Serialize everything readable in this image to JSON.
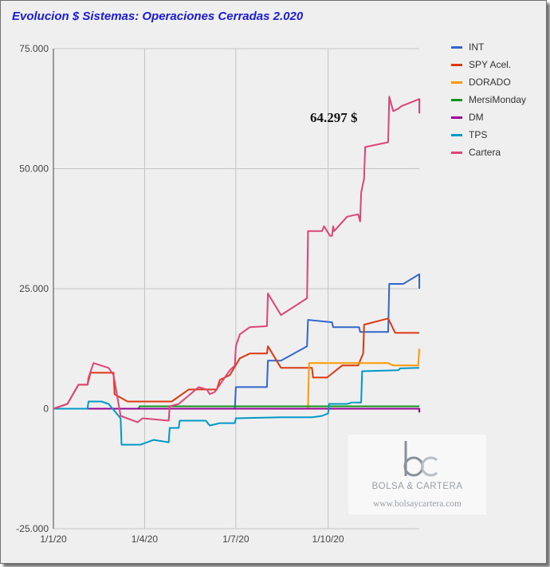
{
  "chart_data": {
    "type": "line",
    "title": "Evolucion $ Sistemas: Operaciones Cerradas 2.020",
    "xlabel": "",
    "ylabel": "",
    "x_ticks": [
      "1/1/20",
      "1/4/20",
      "1/7/20",
      "1/10/20"
    ],
    "y_ticks": [
      "75.000",
      "50.000",
      "25.000",
      "0",
      "-25.000"
    ],
    "ylim": [
      -25000,
      75000
    ],
    "xlim": [
      "2020-01-01",
      "2020-12-31"
    ],
    "grid": true,
    "legend_position": "right",
    "annotation": "64.297 $",
    "series": [
      {
        "name": "INT",
        "color": "#3366cc",
        "points": [
          [
            "2020-01-01",
            0
          ],
          [
            "2020-06-30",
            0
          ],
          [
            "2020-07-01",
            4500
          ],
          [
            "2020-08-01",
            4500
          ],
          [
            "2020-08-02",
            10000
          ],
          [
            "2020-08-15",
            10000
          ],
          [
            "2020-09-10",
            13000
          ],
          [
            "2020-09-11",
            18500
          ],
          [
            "2020-10-05",
            18000
          ],
          [
            "2020-10-06",
            17000
          ],
          [
            "2020-11-01",
            17000
          ],
          [
            "2020-11-02",
            16000
          ],
          [
            "2020-11-30",
            16000
          ],
          [
            "2020-12-01",
            26000
          ],
          [
            "2020-12-15",
            26000
          ],
          [
            "2020-12-31",
            28000
          ],
          [
            "2020-12-31",
            25000
          ]
        ]
      },
      {
        "name": "SPY Acel.",
        "color": "#dc3912",
        "points": [
          [
            "2020-01-01",
            0
          ],
          [
            "2020-01-15",
            1000
          ],
          [
            "2020-01-26",
            5000
          ],
          [
            "2020-02-04",
            5000
          ],
          [
            "2020-02-07",
            7500
          ],
          [
            "2020-02-18",
            7500
          ],
          [
            "2020-03-01",
            7500
          ],
          [
            "2020-03-02",
            3000
          ],
          [
            "2020-03-15",
            1500
          ],
          [
            "2020-03-26",
            1500
          ],
          [
            "2020-04-28",
            1500
          ],
          [
            "2020-05-15",
            4000
          ],
          [
            "2020-06-12",
            4000
          ],
          [
            "2020-06-15",
            6000
          ],
          [
            "2020-06-25",
            7000
          ],
          [
            "2020-07-05",
            10500
          ],
          [
            "2020-07-15",
            11500
          ],
          [
            "2020-08-01",
            11500
          ],
          [
            "2020-08-02",
            13000
          ],
          [
            "2020-08-15",
            8500
          ],
          [
            "2020-09-15",
            8500
          ],
          [
            "2020-09-16",
            6500
          ],
          [
            "2020-09-30",
            6500
          ],
          [
            "2020-10-15",
            9000
          ],
          [
            "2020-10-31",
            9000
          ],
          [
            "2020-11-05",
            11500
          ],
          [
            "2020-11-06",
            17500
          ],
          [
            "2020-11-30",
            18800
          ],
          [
            "2020-12-07",
            15800
          ],
          [
            "2020-12-31",
            15800
          ]
        ]
      },
      {
        "name": "DORADO",
        "color": "#ff9900",
        "points": [
          [
            "2020-01-01",
            0
          ],
          [
            "2020-09-11",
            0
          ],
          [
            "2020-09-12",
            9500
          ],
          [
            "2020-11-30",
            9500
          ],
          [
            "2020-12-05",
            9000
          ],
          [
            "2020-12-30",
            9000
          ],
          [
            "2020-12-31",
            12500
          ]
        ]
      },
      {
        "name": "MersiMonday",
        "color": "#109618",
        "points": [
          [
            "2020-01-01",
            0
          ],
          [
            "2020-03-26",
            0
          ],
          [
            "2020-03-27",
            500
          ],
          [
            "2020-12-31",
            500
          ]
        ]
      },
      {
        "name": "DM",
        "color": "#990099",
        "points": [
          [
            "2020-01-01",
            0
          ],
          [
            "2020-12-31",
            0
          ],
          [
            "2020-12-31",
            -800
          ]
        ]
      },
      {
        "name": "TPS",
        "color": "#0099c6",
        "points": [
          [
            "2020-01-01",
            0
          ],
          [
            "2020-02-04",
            0
          ],
          [
            "2020-02-05",
            1500
          ],
          [
            "2020-02-18",
            1500
          ],
          [
            "2020-02-25",
            1000
          ],
          [
            "2020-03-08",
            -2000
          ],
          [
            "2020-03-09",
            -7500
          ],
          [
            "2020-03-28",
            -7500
          ],
          [
            "2020-04-10",
            -6500
          ],
          [
            "2020-04-25",
            -7000
          ],
          [
            "2020-04-26",
            -4000
          ],
          [
            "2020-05-05",
            -4000
          ],
          [
            "2020-05-06",
            -2500
          ],
          [
            "2020-06-01",
            -2500
          ],
          [
            "2020-06-05",
            -3500
          ],
          [
            "2020-06-15",
            -3000
          ],
          [
            "2020-06-30",
            -3000
          ],
          [
            "2020-07-01",
            -2000
          ],
          [
            "2020-08-15",
            -1800
          ],
          [
            "2020-09-15",
            -1800
          ],
          [
            "2020-09-25",
            -1500
          ],
          [
            "2020-10-01",
            -1000
          ],
          [
            "2020-10-02",
            1000
          ],
          [
            "2020-10-20",
            1000
          ],
          [
            "2020-10-25",
            1300
          ],
          [
            "2020-11-03",
            1300
          ],
          [
            "2020-11-04",
            7800
          ],
          [
            "2020-12-10",
            8000
          ],
          [
            "2020-12-12",
            8400
          ],
          [
            "2020-12-31",
            8500
          ]
        ]
      },
      {
        "name": "Cartera",
        "color": "#dd4477",
        "points": [
          [
            "2020-01-01",
            0
          ],
          [
            "2020-01-15",
            1000
          ],
          [
            "2020-01-26",
            5000
          ],
          [
            "2020-02-04",
            5000
          ],
          [
            "2020-02-05",
            6500
          ],
          [
            "2020-02-10",
            9500
          ],
          [
            "2020-02-25",
            8500
          ],
          [
            "2020-03-01",
            7000
          ],
          [
            "2020-03-08",
            -1500
          ],
          [
            "2020-03-25",
            -2800
          ],
          [
            "2020-03-30",
            -2000
          ],
          [
            "2020-04-25",
            -2500
          ],
          [
            "2020-04-26",
            500
          ],
          [
            "2020-05-05",
            1000
          ],
          [
            "2020-05-25",
            4500
          ],
          [
            "2020-06-02",
            4000
          ],
          [
            "2020-06-05",
            3000
          ],
          [
            "2020-06-10",
            3500
          ],
          [
            "2020-06-25",
            8000
          ],
          [
            "2020-06-30",
            9000
          ],
          [
            "2020-07-01",
            13000
          ],
          [
            "2020-07-05",
            15500
          ],
          [
            "2020-07-15",
            17000
          ],
          [
            "2020-08-01",
            17200
          ],
          [
            "2020-08-02",
            24000
          ],
          [
            "2020-08-15",
            19500
          ],
          [
            "2020-09-10",
            23000
          ],
          [
            "2020-09-11",
            37000
          ],
          [
            "2020-09-25",
            37000
          ],
          [
            "2020-09-27",
            38000
          ],
          [
            "2020-10-03",
            36000
          ],
          [
            "2020-10-05",
            36000
          ],
          [
            "2020-10-06",
            38000
          ],
          [
            "2020-10-07",
            37000
          ],
          [
            "2020-10-20",
            40000
          ],
          [
            "2020-10-31",
            40500
          ],
          [
            "2020-11-02",
            39000
          ],
          [
            "2020-11-03",
            45000
          ],
          [
            "2020-11-06",
            48000
          ],
          [
            "2020-11-07",
            54500
          ],
          [
            "2020-11-30",
            55500
          ],
          [
            "2020-12-01",
            65000
          ],
          [
            "2020-12-05",
            62000
          ],
          [
            "2020-12-10",
            62500
          ],
          [
            "2020-12-13",
            63000
          ],
          [
            "2020-12-31",
            64500
          ],
          [
            "2020-12-31",
            61500
          ]
        ]
      }
    ]
  },
  "watermark": {
    "logo_text": "bc",
    "name": "BOLSA & CARTERA",
    "url": "www.bolsaycartera.com"
  }
}
